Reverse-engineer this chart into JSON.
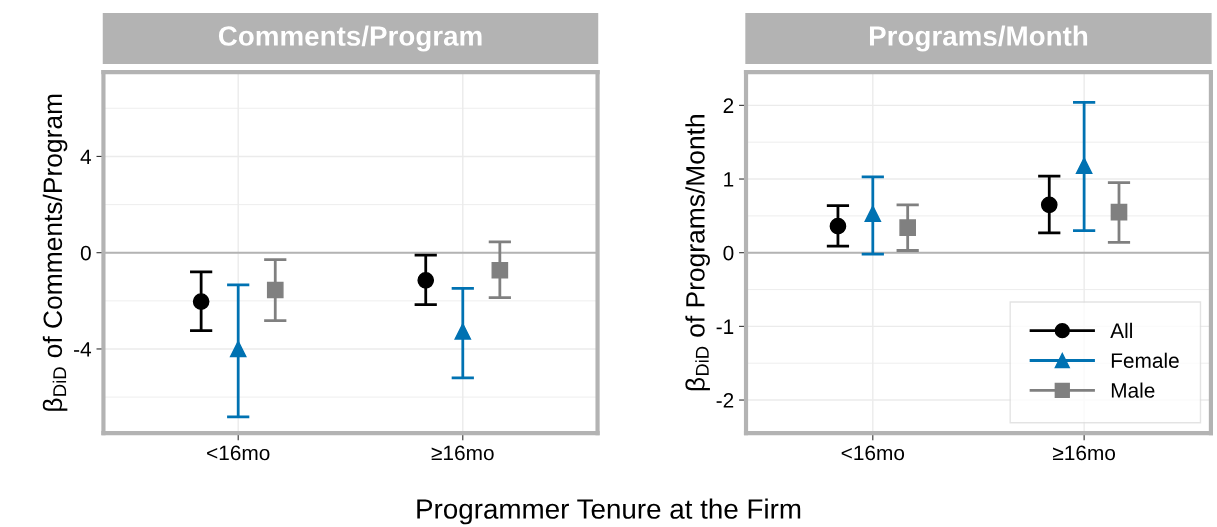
{
  "chart_data": [
    {
      "type": "scatter",
      "title": "Comments/Program",
      "xlabel": "Programmer Tenure at the Firm",
      "ylabel": "β$_{DiD}$ of Comments/Program",
      "categories": [
        "<16mo",
        "≥16mo"
      ],
      "ylim": [
        -7.5,
        7.5
      ],
      "yticks": [
        4,
        0,
        -4
      ],
      "grid": true,
      "ref_lines": [
        {
          "axis": "y",
          "value": 0,
          "color": "#b3b3b3"
        }
      ],
      "series": [
        {
          "color": "#000000",
          "marker": "circle",
          "values": [
            -2.03,
            -1.15
          ],
          "errors": [
            [
              -3.24,
              -0.8
            ],
            [
              -2.16,
              -0.1
            ]
          ]
        },
        {
          "color": "#0072b2",
          "marker": "triangle",
          "values": [
            -4.0,
            -3.27
          ],
          "errors": [
            [
              -6.82,
              -1.34
            ],
            [
              -5.2,
              -1.48
            ]
          ]
        },
        {
          "color": "#808080",
          "marker": "square",
          "values": [
            -1.55,
            -0.73
          ],
          "errors": [
            [
              -2.82,
              -0.29
            ],
            [
              -1.87,
              0.45
            ]
          ]
        }
      ]
    },
    {
      "type": "scatter",
      "title": "Programs/Month",
      "ylabel": "β$_{DiD}$ of Programs/Month",
      "categories": [
        "<16mo",
        "≥16mo"
      ],
      "ylim": [
        -2.45,
        2.45
      ],
      "yticks": [
        2,
        1,
        0,
        -1,
        -2
      ],
      "grid": true,
      "legend": "bottom right",
      "ref_lines": [
        {
          "axis": "y",
          "value": 0,
          "color": "#b3b3b3"
        }
      ],
      "series": [
        {
          "name": "All",
          "color": "#000000",
          "marker": "circle",
          "values": [
            0.36,
            0.65
          ],
          "errors": [
            [
              0.09,
              0.64
            ],
            [
              0.27,
              1.04
            ]
          ]
        },
        {
          "name": "Female",
          "color": "#0072b2",
          "marker": "triangle",
          "values": [
            0.53,
            1.18
          ],
          "errors": [
            [
              -0.02,
              1.03
            ],
            [
              0.3,
              2.04
            ]
          ]
        },
        {
          "name": "Male",
          "color": "#808080",
          "marker": "square",
          "values": [
            0.34,
            0.55
          ],
          "errors": [
            [
              0.03,
              0.65
            ],
            [
              0.14,
              0.95
            ]
          ]
        }
      ]
    }
  ]
}
